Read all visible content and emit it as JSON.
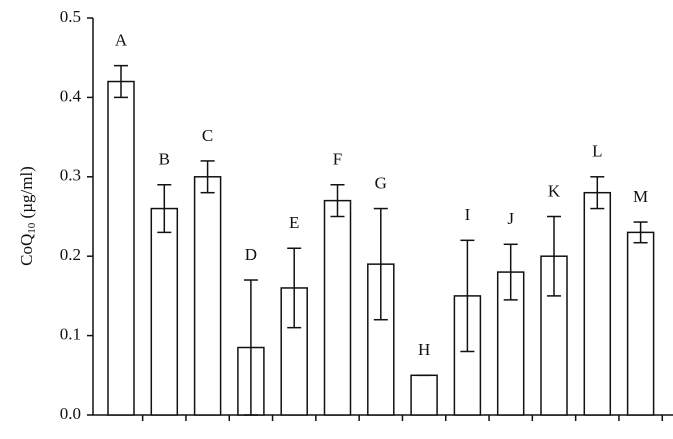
{
  "chart_data": {
    "type": "bar",
    "y_label": {
      "main": "CoQ",
      "sub": "10",
      "unit": "(µg/ml)"
    },
    "categories": [
      "A",
      "B",
      "C",
      "D",
      "E",
      "F",
      "G",
      "H",
      "I",
      "J",
      "K",
      "L",
      "M"
    ],
    "values": [
      0.42,
      0.26,
      0.3,
      0.085,
      0.16,
      0.27,
      0.19,
      0.05,
      0.15,
      0.18,
      0.2,
      0.28,
      0.23
    ],
    "errors": [
      0.02,
      0.03,
      0.02,
      0.085,
      0.05,
      0.02,
      0.07,
      0,
      0.07,
      0.035,
      0.05,
      0.02,
      0.013
    ],
    "color": "#ffffff",
    "ylim": [
      0,
      0.5
    ],
    "yticks": [
      {
        "value": 0,
        "label": "0.0"
      },
      0.1,
      0.2,
      0.3,
      0.4,
      0.5
    ],
    "grid": false
  }
}
